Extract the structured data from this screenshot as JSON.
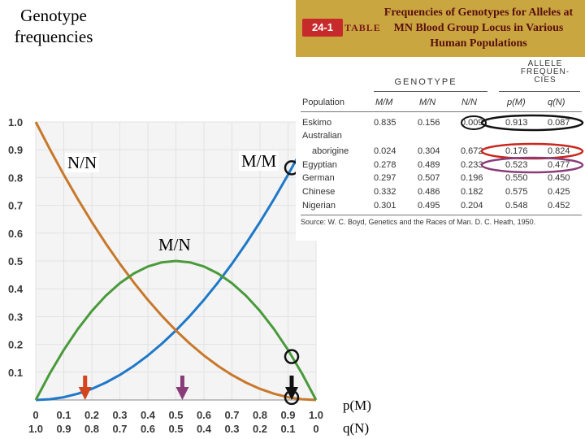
{
  "slide": {
    "title": "Genotype frequencies",
    "labels": {
      "nn": "N/N",
      "mm": "M/M",
      "mn": "M/N"
    },
    "axis_notes": {
      "p": "p(M)",
      "q": "q(N)"
    }
  },
  "chart_data": {
    "type": "line",
    "x_axis_top": [
      "0",
      "0.1",
      "0.2",
      "0.3",
      "0.4",
      "0.5",
      "0.6",
      "0.7",
      "0.8",
      "0.9",
      "1.0"
    ],
    "x_axis_bottom": [
      "1.0",
      "0.9",
      "0.8",
      "0.7",
      "0.6",
      "0.5",
      "0.4",
      "0.3",
      "0.2",
      "0.1",
      "0"
    ],
    "y_ticks": [
      "0.1",
      "0.2",
      "0.3",
      "0.4",
      "0.5",
      "0.6",
      "0.7",
      "0.8",
      "0.9",
      "1.0"
    ],
    "xlim": [
      0,
      1
    ],
    "ylim": [
      0,
      1
    ],
    "grid": true,
    "x": [
      0,
      0.05,
      0.1,
      0.15,
      0.2,
      0.25,
      0.3,
      0.35,
      0.4,
      0.45,
      0.5,
      0.55,
      0.6,
      0.65,
      0.7,
      0.75,
      0.8,
      0.85,
      0.9,
      0.95,
      1.0
    ],
    "series": [
      {
        "key": "MM",
        "color": "#1f78c8",
        "values": [
          0,
          0.0025,
          0.01,
          0.0225,
          0.04,
          0.0625,
          0.09,
          0.1225,
          0.16,
          0.2025,
          0.25,
          0.3025,
          0.36,
          0.4225,
          0.49,
          0.5625,
          0.64,
          0.7225,
          0.81,
          0.9025,
          1.0
        ]
      },
      {
        "key": "NN",
        "color": "#c8782a",
        "values": [
          1.0,
          0.9025,
          0.81,
          0.7225,
          0.64,
          0.5625,
          0.49,
          0.4225,
          0.36,
          0.3025,
          0.25,
          0.2025,
          0.16,
          0.1225,
          0.09,
          0.0625,
          0.04,
          0.0225,
          0.01,
          0.0025,
          0
        ]
      },
      {
        "key": "MN",
        "color": "#4a9a3c",
        "values": [
          0,
          0.095,
          0.18,
          0.255,
          0.32,
          0.375,
          0.42,
          0.455,
          0.48,
          0.495,
          0.5,
          0.495,
          0.48,
          0.455,
          0.42,
          0.375,
          0.32,
          0.255,
          0.18,
          0.095,
          0
        ]
      }
    ],
    "markers": {
      "arrows": [
        {
          "x": 0.176,
          "color": "#d2451e"
        },
        {
          "x": 0.523,
          "color": "#8a3c78"
        },
        {
          "x": 0.913,
          "color": "#111111"
        }
      ],
      "circles": [
        {
          "x": 0.913,
          "y": 0.835
        },
        {
          "x": 0.913,
          "y": 0.156
        },
        {
          "x": 0.913,
          "y": 0.009
        }
      ]
    },
    "colors": {
      "grid": "#e2e2e2",
      "plot_bg": "#f4f4f4"
    }
  },
  "table": {
    "badge": "24-1",
    "badge_word": "TABLE",
    "title": "Frequencies of Genotypes for Alleles at MN Blood Group Locus in Various Human Populations",
    "allele_head": "ALLELE FREQUEN- CIES",
    "genotype_head": "GENOTYPE",
    "columns": [
      "Population",
      "M/M",
      "M/N",
      "N/N",
      "p(M)",
      "q(N)"
    ],
    "rows": [
      {
        "pop": "Eskimo",
        "mm": "0.835",
        "mn": "0.156",
        "nn": "0.009",
        "p": "0.913",
        "q": "0.087"
      },
      {
        "pop": "Australian",
        "mm": "",
        "mn": "",
        "nn": "",
        "p": "",
        "q": ""
      },
      {
        "pop": "aborigine",
        "mm": "0.024",
        "mn": "0.304",
        "nn": "0.672",
        "p": "0.176",
        "q": "0.824"
      },
      {
        "pop": "Egyptian",
        "mm": "0.278",
        "mn": "0.489",
        "nn": "0.233",
        "p": "0.523",
        "q": "0.477"
      },
      {
        "pop": "German",
        "mm": "0.297",
        "mn": "0.507",
        "nn": "0.196",
        "p": "0.550",
        "q": "0.450"
      },
      {
        "pop": "Chinese",
        "mm": "0.332",
        "mn": "0.486",
        "nn": "0.182",
        "p": "0.575",
        "q": "0.425"
      },
      {
        "pop": "Nigerian",
        "mm": "0.301",
        "mn": "0.495",
        "nn": "0.204",
        "p": "0.548",
        "q": "0.452"
      }
    ],
    "source": "Source: W. C. Boyd, Genetics and the Races of Man. D. C. Heath, 1950.",
    "highlights": [
      {
        "row": 0,
        "color": "#111111"
      },
      {
        "row": 2,
        "color": "#c8281e"
      },
      {
        "row": 3,
        "color": "#8a3c78"
      }
    ]
  }
}
